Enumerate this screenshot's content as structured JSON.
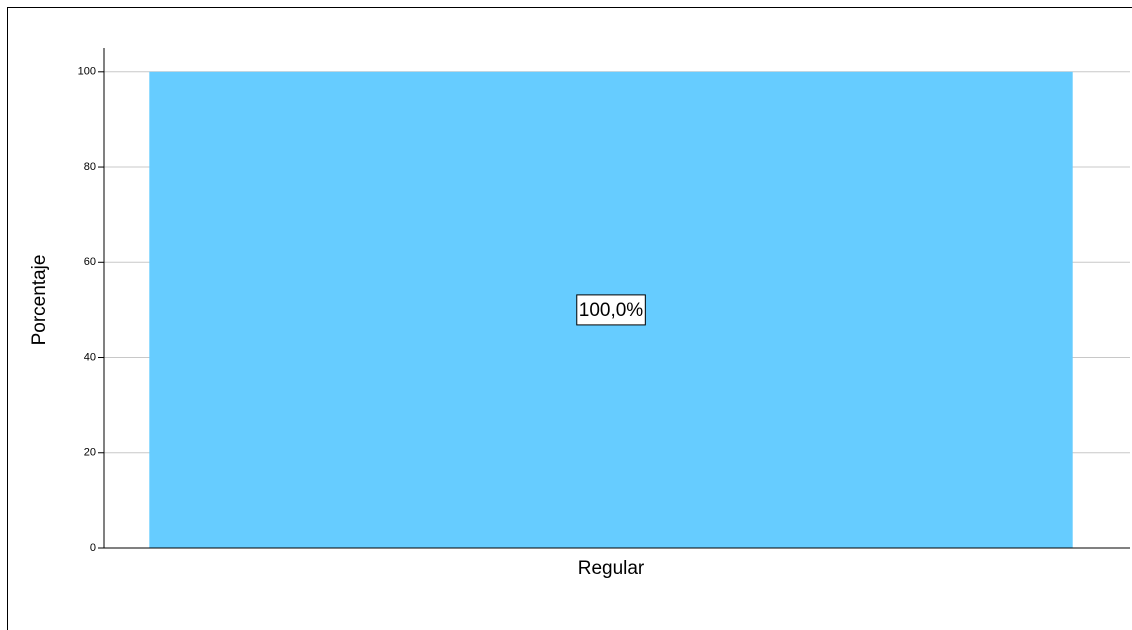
{
  "chart_data": {
    "type": "bar",
    "ylabel": "Porcentaje",
    "categories": [
      "Regular"
    ],
    "values": [
      100
    ],
    "value_labels": [
      "100,0%"
    ],
    "color": "#66ccff",
    "ylim": [
      0,
      105
    ],
    "yticks": [
      0,
      20,
      40,
      60,
      80,
      100
    ],
    "grid": true
  }
}
